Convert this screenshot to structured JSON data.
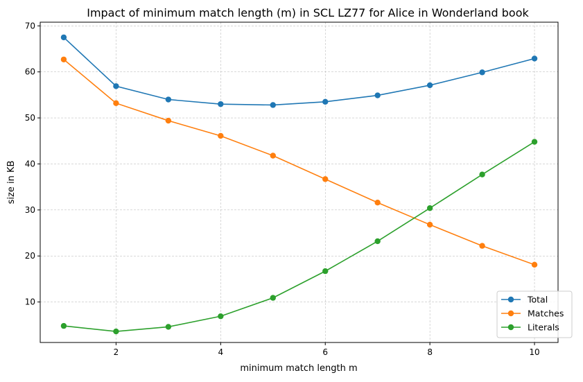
{
  "chart_data": {
    "type": "line",
    "title": "Impact of minimum match length (m) in SCL LZ77 for Alice in Wonderland book",
    "xlabel": "minimum match length m",
    "ylabel": "size in KB",
    "x": [
      1,
      2,
      3,
      4,
      5,
      6,
      7,
      8,
      9,
      10
    ],
    "xlim": [
      0.55,
      10.45
    ],
    "ylim": [
      1.2,
      70.8
    ],
    "xticks": [
      2,
      4,
      6,
      8,
      10
    ],
    "yticks": [
      10,
      20,
      30,
      40,
      50,
      60,
      70
    ],
    "grid": true,
    "legend_position": "lower-right",
    "series": [
      {
        "name": "Total",
        "color": "#1f77b4",
        "values": [
          67.5,
          56.9,
          54.0,
          53.0,
          52.8,
          53.5,
          54.9,
          57.1,
          59.9,
          62.9
        ]
      },
      {
        "name": "Matches",
        "color": "#ff7f0e",
        "values": [
          62.7,
          53.2,
          49.4,
          46.1,
          41.8,
          36.7,
          31.6,
          26.8,
          22.2,
          18.1
        ]
      },
      {
        "name": "Literals",
        "color": "#2ca02c",
        "values": [
          4.8,
          3.6,
          4.6,
          6.9,
          10.9,
          16.7,
          23.2,
          30.4,
          37.7,
          44.8
        ]
      }
    ]
  }
}
